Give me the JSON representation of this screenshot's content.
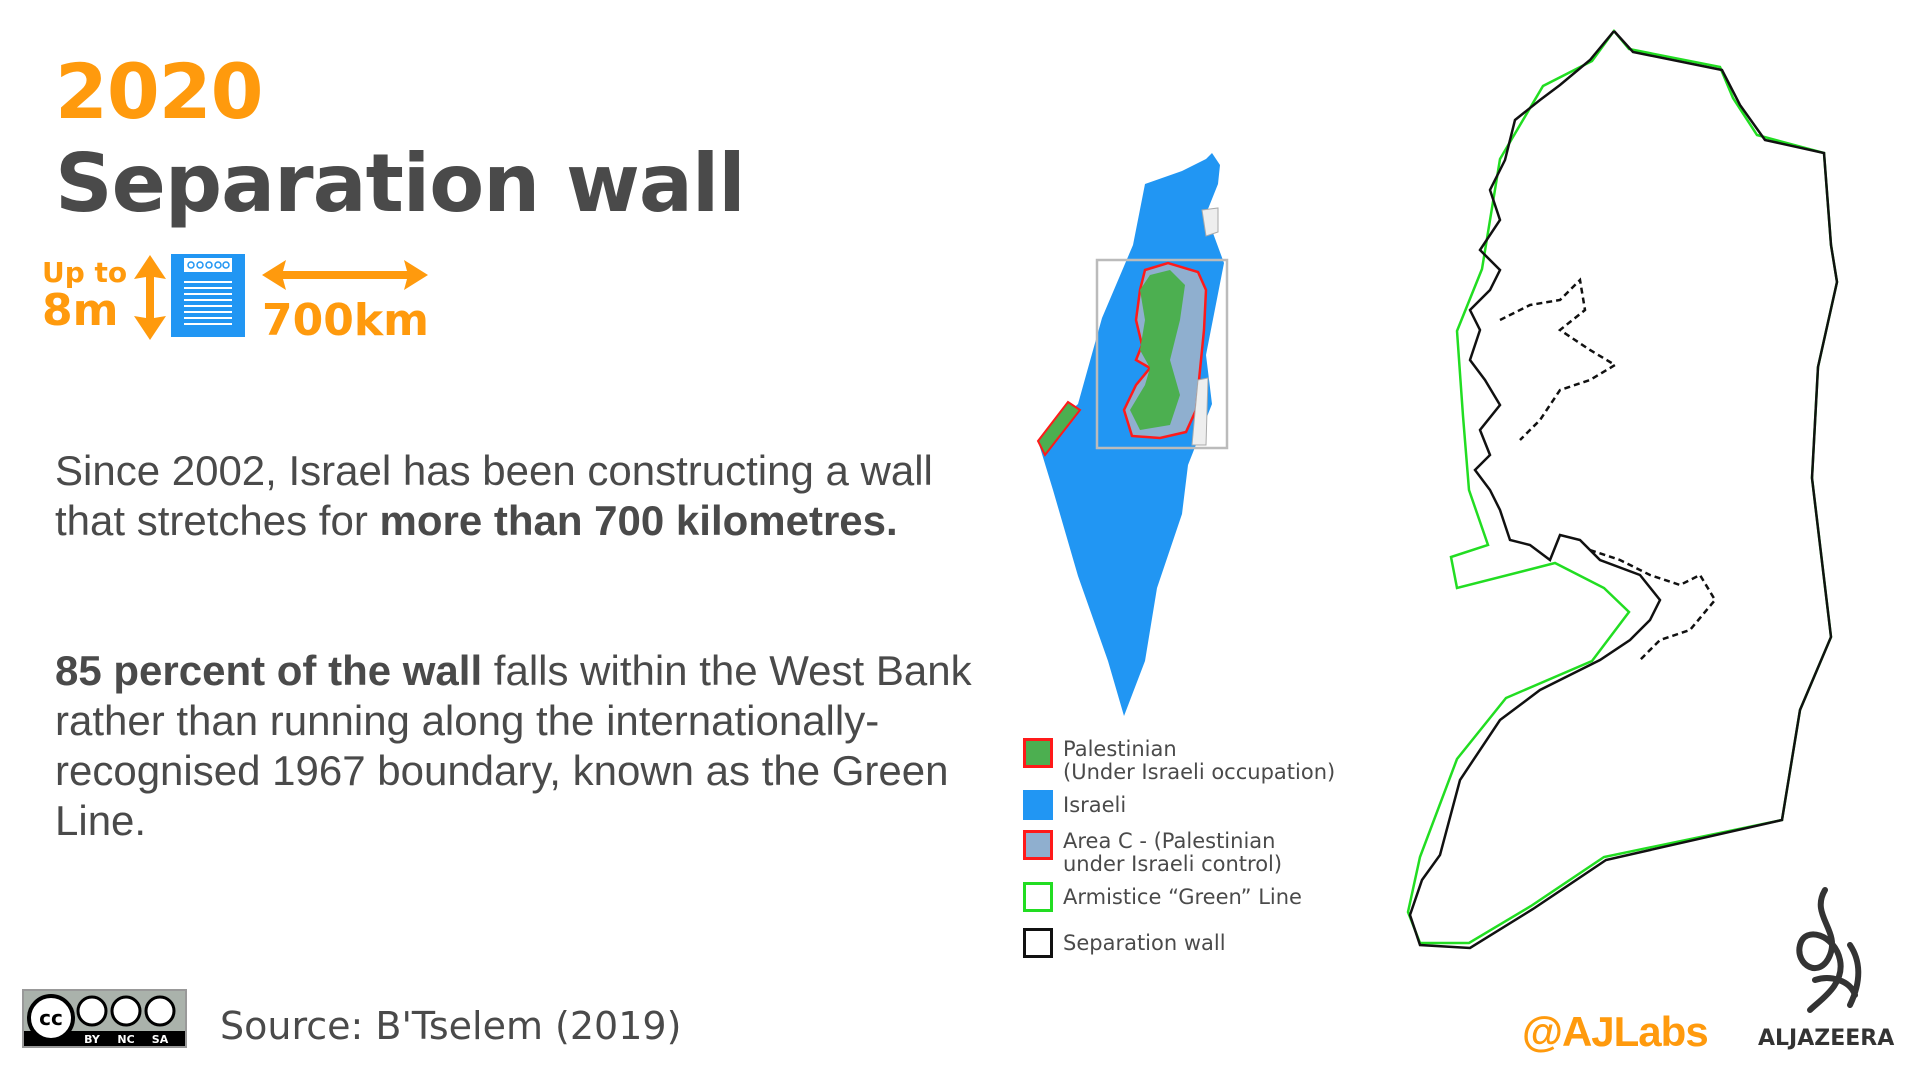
{
  "header": {
    "year": "2020",
    "title": "Separation wall"
  },
  "stats": {
    "height_line1": "Up to",
    "height_line2": "8m",
    "length": "700km"
  },
  "body": {
    "p1_plain": "Since 2002, Israel has been constructing a wall that stretches for ",
    "p1_bold": "more than 700 kilometres.",
    "p2_bold": "85 percent of the wall",
    "p2_plain": " falls within the West Bank rather than running along the internationally-recognised 1967 boundary, known as the Green Line."
  },
  "legend": [
    {
      "label1": "Palestinian",
      "label2": "(Under Israeli occupation)",
      "fill": "#4caf50",
      "border": "#ff1a1a"
    },
    {
      "label1": "Israeli",
      "label2": "",
      "fill": "#2196f3",
      "border": "#2196f3"
    },
    {
      "label1": "Area C - (Palestinian",
      "label2": "under Israeli control)",
      "fill": "#8fafcf",
      "border": "#ff1a1a"
    },
    {
      "label1": "Armistice “Green” Line",
      "label2": "",
      "fill": "#ffffff",
      "border": "#22dd22"
    },
    {
      "label1": "Separation wall",
      "label2": "",
      "fill": "#ffffff",
      "border": "#111111"
    }
  ],
  "footer": {
    "source": "Source: B'Tselem (2019)",
    "license": {
      "cc": "cc",
      "by": "BY",
      "nc": "NC",
      "sa": "SA"
    },
    "handle": "@AJLabs",
    "brand": "ALJAZEERA"
  },
  "colors": {
    "accent": "#ff9a0d",
    "israel": "#2196f3",
    "palestinian": "#4caf50",
    "green_line": "#22dd22",
    "wall": "#111111"
  }
}
